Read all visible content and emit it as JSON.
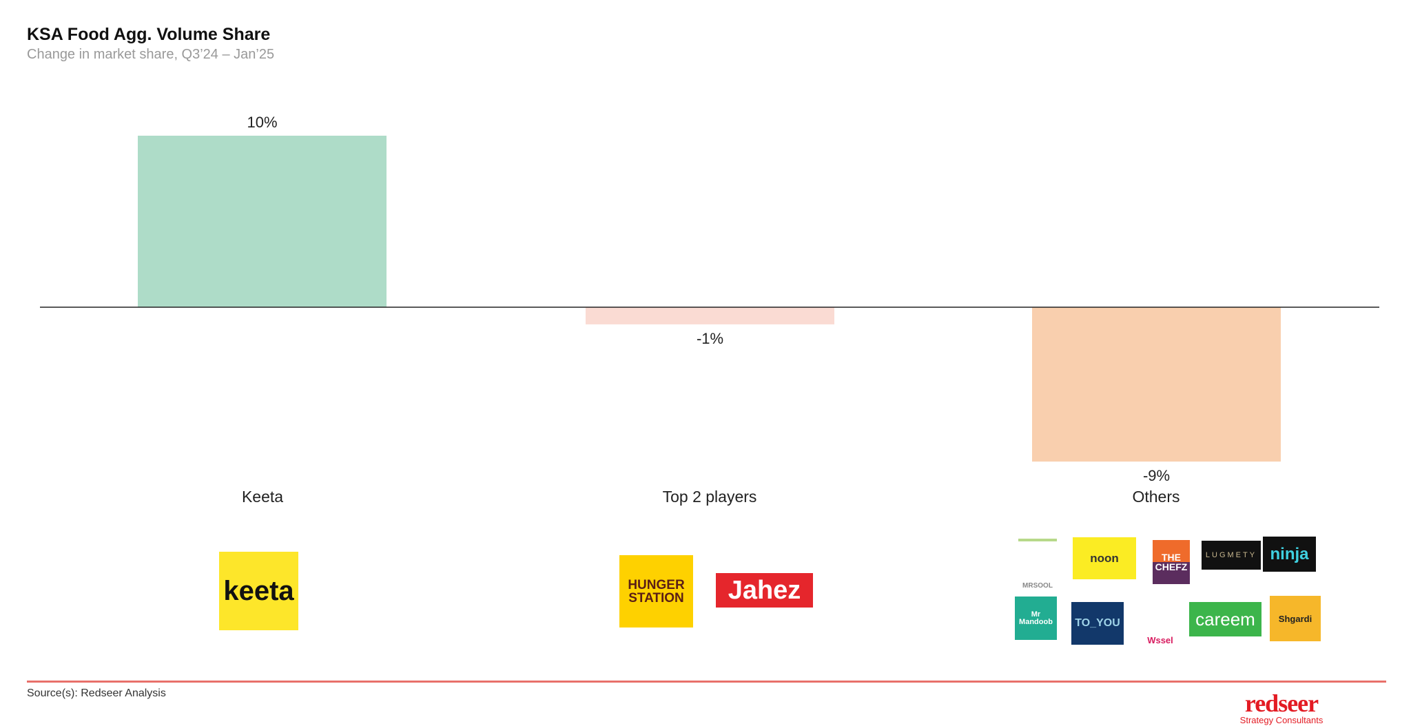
{
  "header": {
    "title": "KSA Food Agg. Volume Share",
    "subtitle": "Change in market share, Q3’24 – Jan’25"
  },
  "chart_data": {
    "type": "bar",
    "categories": [
      "Keeta",
      "Top 2 players",
      "Others"
    ],
    "values": [
      10,
      -1,
      -9
    ],
    "data_labels": [
      "10%",
      "-1%",
      "-9%"
    ],
    "colors": [
      "#aedcc8",
      "#fadbd3",
      "#f9cfae"
    ],
    "title": "KSA Food Agg. Volume Share",
    "subtitle": "Change in market share, Q3’24 – Jan’25",
    "xlabel": "",
    "ylabel": "",
    "ylim": [
      -9,
      10
    ],
    "grid": false
  },
  "logos": {
    "keeta": [
      "keeta"
    ],
    "top2": [
      "HUNGER STATION",
      "Jahez"
    ],
    "others": [
      "MRSOOL",
      "noon",
      "THE CHEFZ",
      "LUGMETY",
      "ninja",
      "Mr Mandoob",
      "TO_YOU",
      "Wssel",
      "careem",
      "Shgardi"
    ]
  },
  "footer": {
    "source": "Source(s): Redseer Analysis",
    "brand": "redseer",
    "brand_sub": "Strategy Consultants"
  }
}
